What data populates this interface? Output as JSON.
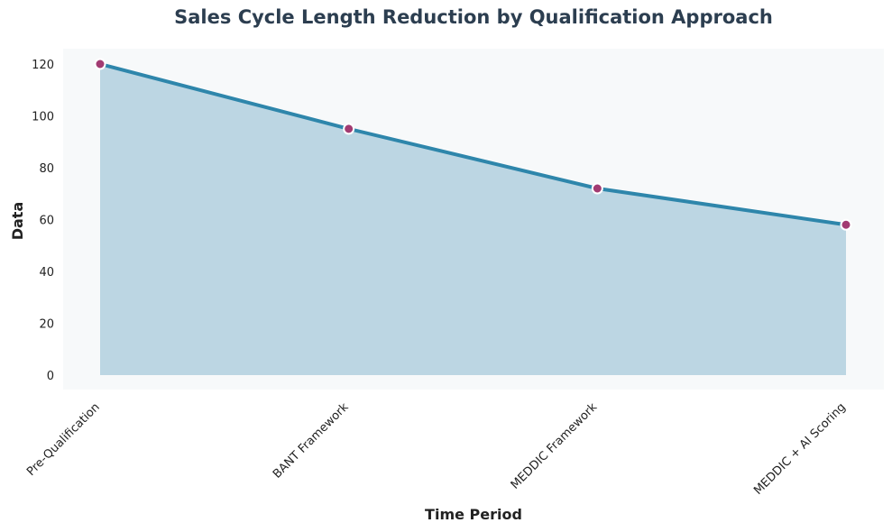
{
  "chart_data": {
    "type": "area",
    "title": "Sales Cycle Length Reduction by Qualification Approach",
    "xlabel": "Time Period",
    "ylabel": "Data",
    "categories": [
      "Pre-Qualification",
      "BANT Framework",
      "MEDDIC Framework",
      "MEDDIC + AI Scoring"
    ],
    "series": [
      {
        "values": [
          120,
          95,
          72,
          58
        ]
      }
    ],
    "ylim": [
      -5,
      127
    ],
    "yticks": [
      0,
      20,
      40,
      60,
      80,
      100,
      120
    ],
    "grid": false,
    "legend": "none",
    "colors": {
      "plot_background": "#f7f9fa",
      "fill": "#bcd6e3",
      "line": "#2e86ab",
      "marker": "#a23b72",
      "marker_edge": "#ffffff",
      "title": "#2c3e50"
    }
  }
}
